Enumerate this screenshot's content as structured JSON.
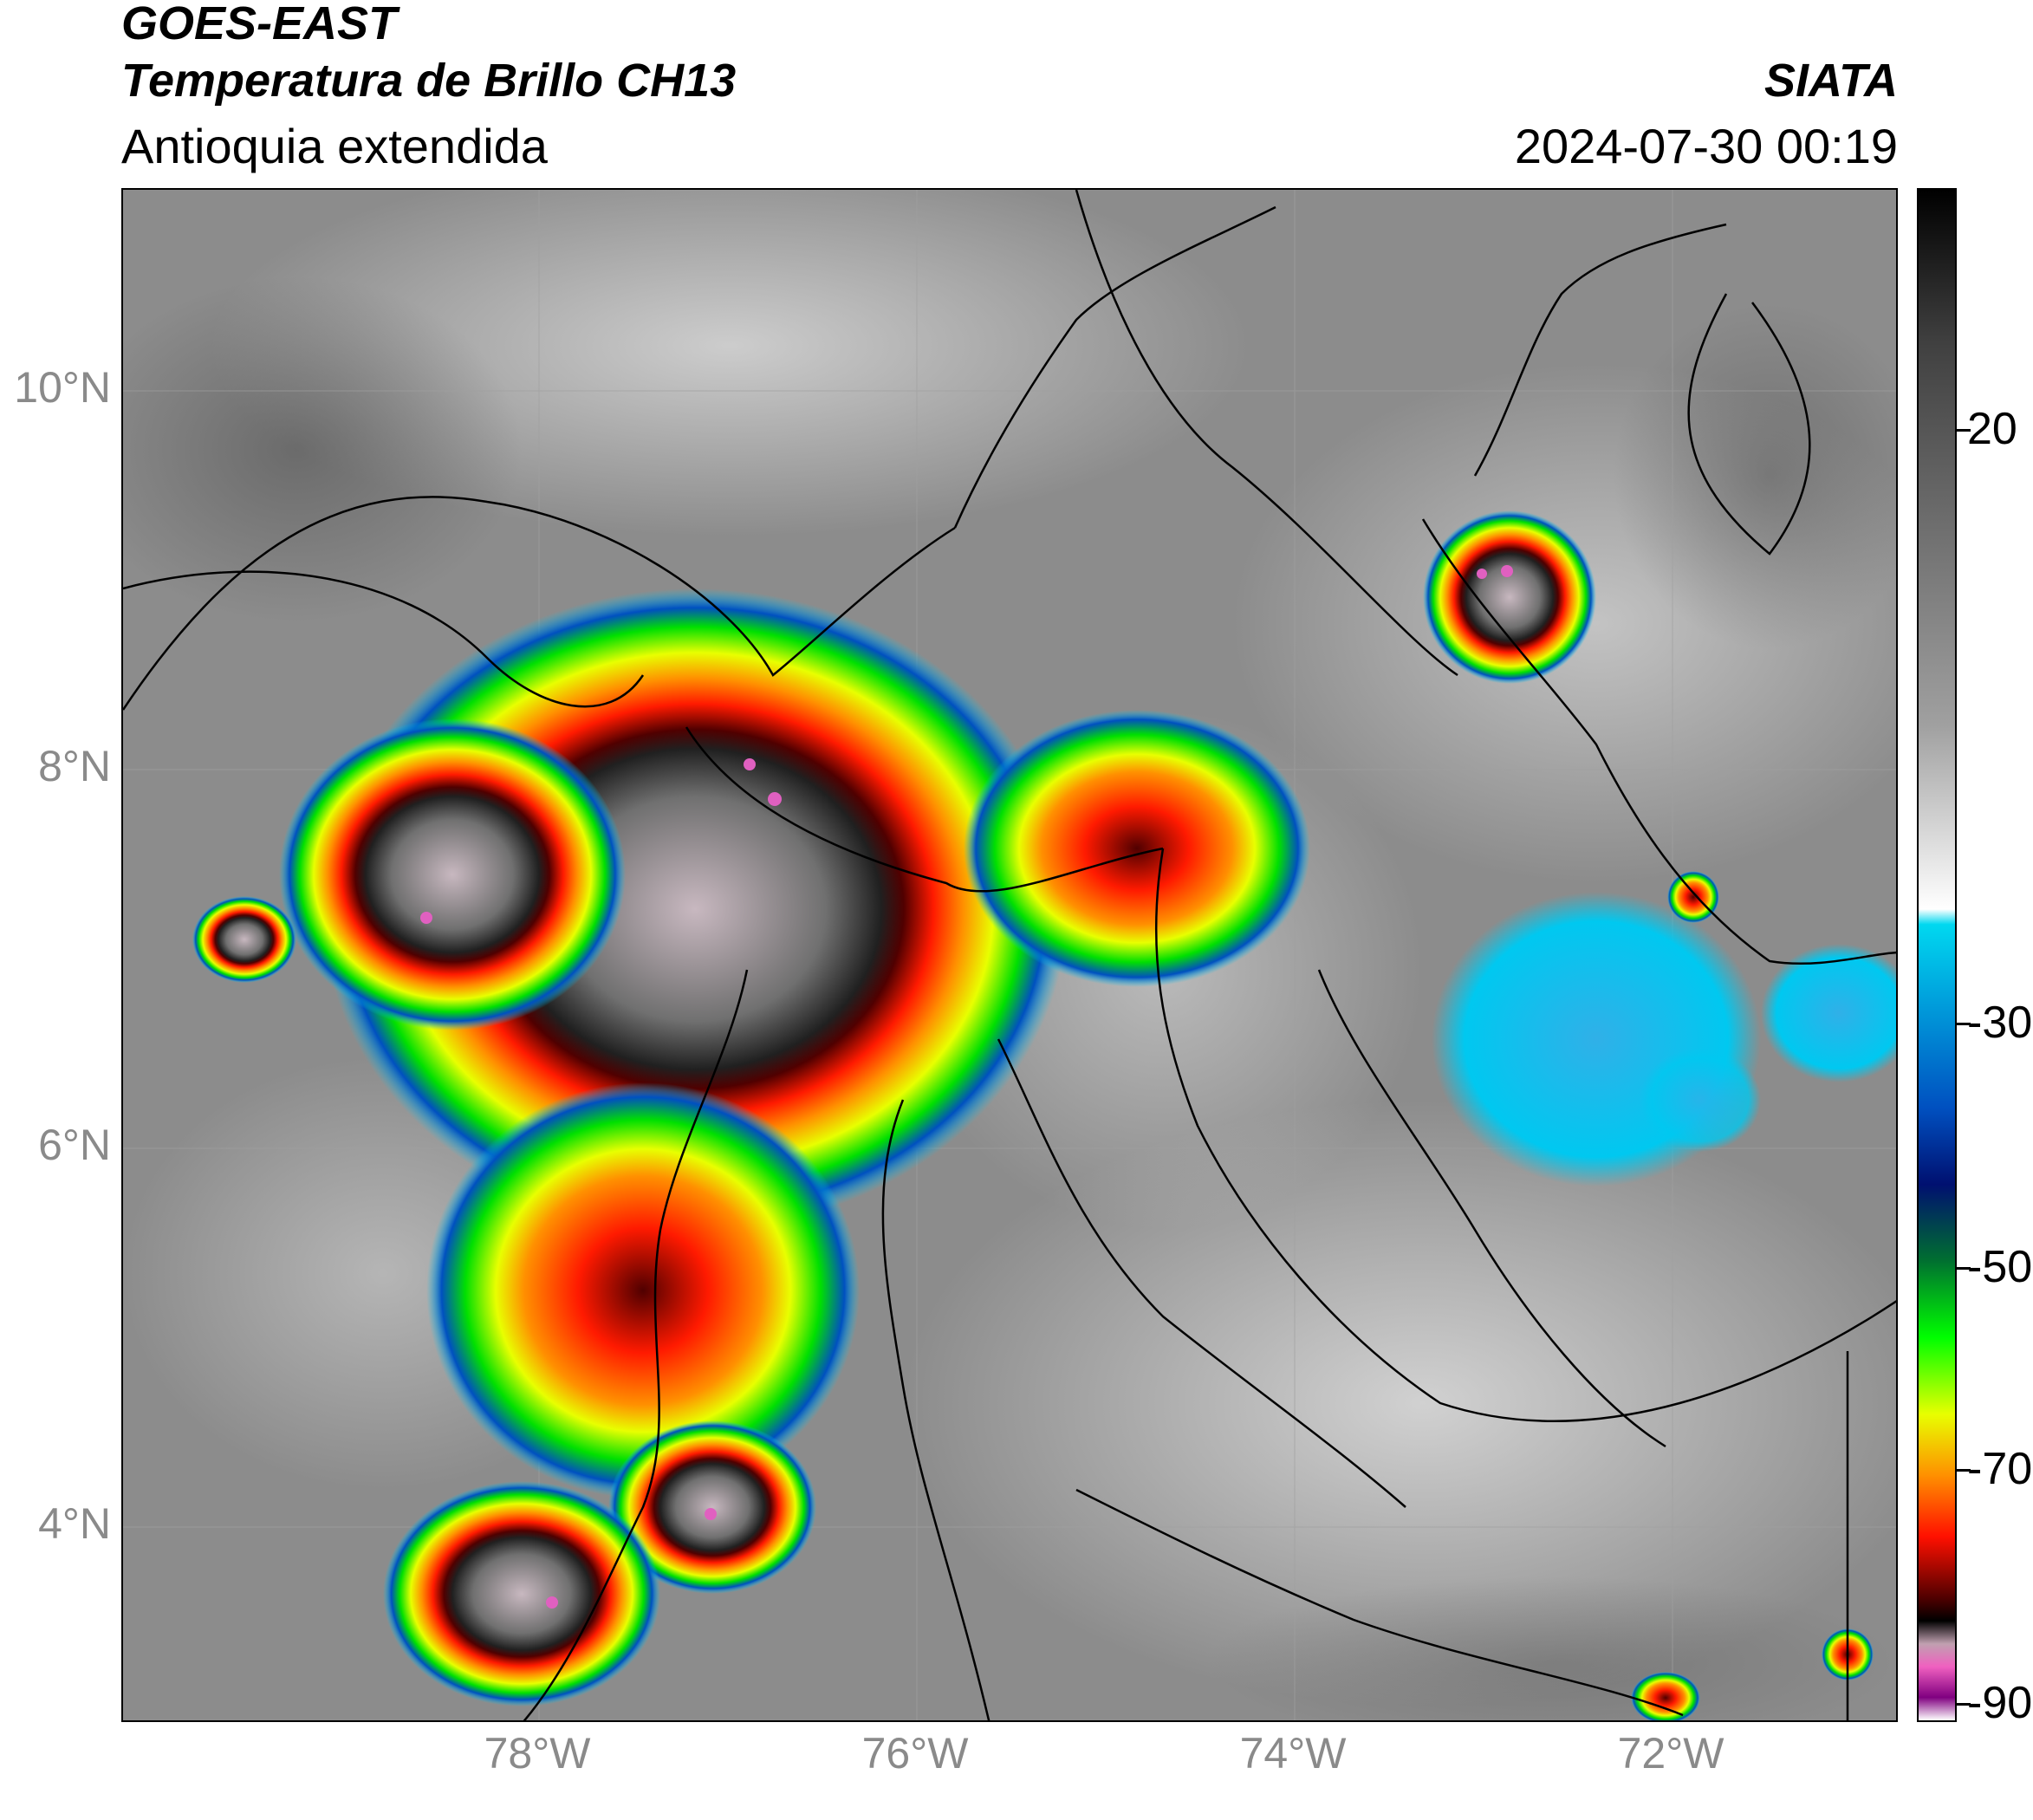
{
  "header": {
    "satellite": "GOES-EAST",
    "product": "Temperatura de Brillo CH13",
    "region": "Antioquia extendida",
    "institution": "SIATA",
    "datetime": "2024-07-30 00:19"
  },
  "map": {
    "lat_labels": [
      "10°N",
      "8°N",
      "6°N",
      "4°N"
    ],
    "lon_labels": [
      "78°W",
      "76°W",
      "74°W",
      "72°W"
    ],
    "extent": {
      "lon_min": -80.2,
      "lon_max": -70.8,
      "lat_min": 2.7,
      "lat_max": 11.1
    }
  },
  "colorbar": {
    "tick_labels": [
      "20",
      "-30",
      "-50",
      "-70",
      "-90"
    ],
    "range": [
      30,
      -90
    ],
    "colors": [
      "#000000",
      "#404040",
      "#a0a0a0",
      "#ffffff",
      "#00d8f0",
      "#0050c0",
      "#001070",
      "#007030",
      "#00ff00",
      "#e8ff00",
      "#ff9000",
      "#ff1000",
      "#500000",
      "#000000",
      "#c0a0b0",
      "#f060c0",
      "#800080",
      "#ffffff"
    ]
  }
}
